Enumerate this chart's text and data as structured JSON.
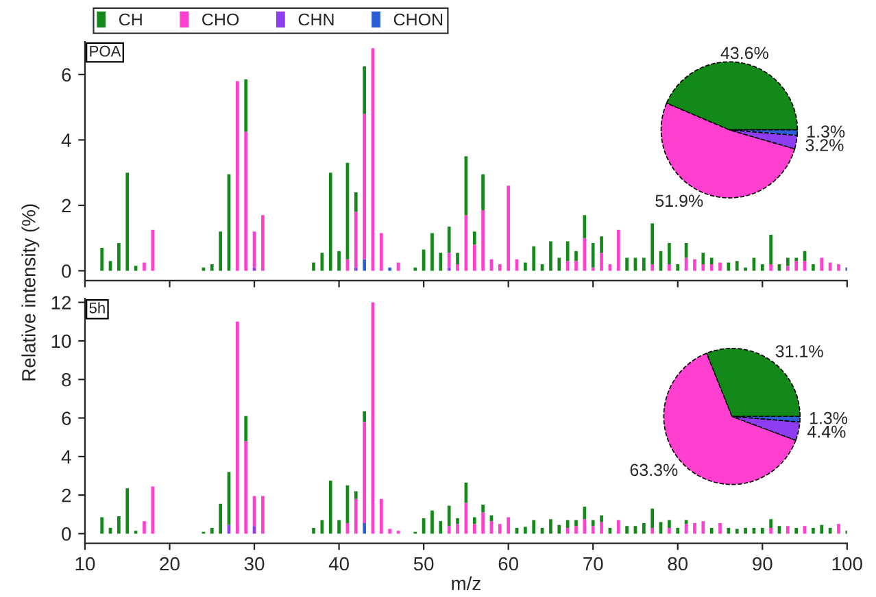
{
  "chart_data": [
    {
      "type": "bar",
      "stacked": true,
      "legend": "top left",
      "tick_labels": "y",
      "ylabel": "Relative intensity (%)",
      "annotations": [
        "POA"
      ],
      "x": [
        12,
        13,
        14,
        15,
        16,
        17,
        18,
        24,
        25,
        26,
        27,
        28,
        29,
        30,
        31,
        37,
        38,
        39,
        40,
        41,
        42,
        43,
        44,
        45,
        46,
        47,
        48,
        49,
        50,
        51,
        52,
        53,
        54,
        55,
        56,
        57,
        58,
        59,
        60,
        61,
        62,
        63,
        64,
        65,
        66,
        67,
        68,
        69,
        70,
        71,
        72,
        73,
        74,
        75,
        76,
        77,
        78,
        79,
        80,
        81,
        82,
        83,
        84,
        85,
        86,
        87,
        88,
        89,
        90,
        91,
        92,
        93,
        94,
        95,
        96,
        97,
        98,
        99,
        100
      ],
      "xlim": [
        10,
        100
      ],
      "xticks": [
        10,
        20,
        30,
        40,
        50,
        60,
        70,
        80,
        90,
        100
      ],
      "ylim": [
        -0.3,
        7
      ],
      "yticks": [
        0,
        2,
        4,
        6
      ],
      "series": [
        {
          "name": "CHON",
          "color": "#2a5fd6",
          "values": [
            null,
            null,
            null,
            null,
            null,
            null,
            null,
            null,
            null,
            null,
            null,
            null,
            null,
            null,
            null,
            null,
            null,
            null,
            null,
            null,
            null,
            0.35,
            null,
            null,
            0.1,
            null,
            null,
            null,
            null,
            null,
            null,
            null,
            null,
            null,
            null,
            null,
            null,
            null,
            null,
            null,
            null,
            null,
            null,
            null,
            null,
            null,
            null,
            null,
            null,
            null,
            null,
            null,
            null,
            null,
            null,
            null,
            null,
            null,
            null,
            null,
            null,
            null,
            null,
            null,
            null,
            null,
            null,
            null,
            null,
            null,
            null,
            null,
            null,
            null,
            null,
            null,
            null,
            null,
            0.1
          ]
        },
        {
          "name": "CHN",
          "color": "#8f3df0",
          "values": [
            null,
            null,
            null,
            null,
            null,
            null,
            null,
            null,
            null,
            null,
            null,
            null,
            null,
            0.1,
            null,
            null,
            null,
            null,
            null,
            null,
            0.1,
            null,
            null,
            null,
            null,
            null,
            null,
            null,
            null,
            null,
            null,
            0.1,
            null,
            null,
            null,
            null,
            null,
            null,
            null,
            null,
            null,
            null,
            null,
            null,
            null,
            null,
            null,
            null,
            null,
            null,
            null,
            null,
            null,
            null,
            null,
            null,
            null,
            null,
            null,
            null,
            null,
            null,
            null,
            null,
            null,
            null,
            null,
            null,
            null,
            null,
            null,
            null,
            null,
            null,
            null,
            null,
            null,
            null,
            null
          ]
        },
        {
          "name": "CHO",
          "color": "#ff3fcf",
          "values": [
            null,
            null,
            null,
            null,
            null,
            0.25,
            1.25,
            null,
            null,
            null,
            null,
            5.8,
            4.25,
            1.1,
            1.7,
            null,
            null,
            null,
            null,
            0.35,
            1.7,
            4.45,
            6.8,
            1.15,
            null,
            0.25,
            null,
            null,
            null,
            null,
            null,
            0.45,
            0.2,
            1.7,
            0.8,
            1.85,
            0.35,
            0.2,
            2.6,
            0.35,
            null,
            null,
            null,
            null,
            null,
            0.3,
            0.3,
            1.0,
            0.1,
            0.55,
            0.2,
            1.25,
            null,
            null,
            null,
            0.2,
            null,
            0.2,
            null,
            0.4,
            0.35,
            0.2,
            0.2,
            0.25,
            null,
            null,
            null,
            null,
            null,
            0.2,
            null,
            0.15,
            0.3,
            0.3,
            null,
            0.4,
            0.25,
            0.2,
            null
          ]
        },
        {
          "name": "CH",
          "color": "#13891a",
          "values": [
            0.7,
            0.3,
            0.85,
            3.0,
            0.15,
            null,
            null,
            0.1,
            0.2,
            1.2,
            2.95,
            null,
            1.6,
            null,
            null,
            0.25,
            0.55,
            3.0,
            0.6,
            2.95,
            0.6,
            1.45,
            null,
            null,
            null,
            null,
            null,
            0.1,
            0.65,
            1.15,
            0.55,
            0.8,
            0.35,
            1.8,
            0.4,
            1.1,
            null,
            null,
            null,
            null,
            0.25,
            0.75,
            0.2,
            0.9,
            0.4,
            0.6,
            0.3,
            0.7,
            0.75,
            0.5,
            null,
            null,
            0.4,
            0.4,
            0.4,
            1.25,
            0.6,
            0.65,
            0.2,
            0.45,
            null,
            0.35,
            0.2,
            null,
            0.25,
            0.3,
            0.1,
            0.4,
            0.2,
            0.9,
            0.2,
            0.25,
            0.1,
            0.3,
            0.2,
            null,
            null,
            null,
            null
          ]
        }
      ]
    },
    {
      "type": "pie",
      "categories": [
        null,
        null,
        null,
        null
      ],
      "values": [
        43.6,
        51.9,
        3.2,
        1.3
      ],
      "colors": [
        "#13891a",
        "#ff3fcf",
        "#8f3df0",
        "#2a5fd6"
      ],
      "value_labels": [
        "43.6%",
        "51.9%",
        "3.2%",
        "1.3%"
      ]
    },
    {
      "type": "bar",
      "stacked": true,
      "xlabel": "m/z",
      "annotations": [
        "5h"
      ],
      "x": [
        12,
        13,
        14,
        15,
        16,
        17,
        18,
        24,
        25,
        26,
        27,
        28,
        29,
        30,
        31,
        37,
        38,
        39,
        40,
        41,
        42,
        43,
        44,
        45,
        46,
        47,
        48,
        49,
        50,
        51,
        52,
        53,
        54,
        55,
        56,
        57,
        58,
        59,
        60,
        61,
        62,
        63,
        64,
        65,
        66,
        67,
        68,
        69,
        70,
        71,
        72,
        73,
        74,
        75,
        76,
        77,
        78,
        79,
        80,
        81,
        82,
        83,
        84,
        85,
        86,
        87,
        88,
        89,
        90,
        91,
        92,
        93,
        94,
        95,
        96,
        97,
        98,
        99,
        100
      ],
      "xlim": [
        10,
        100
      ],
      "xticks": [
        10,
        20,
        30,
        40,
        50,
        60,
        70,
        80,
        90,
        100
      ],
      "ylim": [
        -0.5,
        12.2
      ],
      "yticks": [
        0,
        2,
        4,
        6,
        8,
        10,
        12
      ],
      "series": [
        {
          "color": "#2a5fd6",
          "values": [
            null,
            null,
            null,
            null,
            null,
            null,
            null,
            null,
            null,
            null,
            null,
            null,
            null,
            null,
            null,
            null,
            null,
            null,
            null,
            null,
            null,
            0.55,
            null,
            null,
            null,
            null,
            null,
            null,
            null,
            null,
            null,
            null,
            null,
            null,
            null,
            null,
            null,
            null,
            null,
            null,
            null,
            null,
            null,
            null,
            null,
            null,
            null,
            null,
            null,
            null,
            null,
            null,
            null,
            null,
            null,
            null,
            null,
            null,
            null,
            null,
            null,
            null,
            null,
            null,
            null,
            null,
            null,
            null,
            null,
            null,
            null,
            null,
            null,
            null,
            null,
            null,
            null,
            null,
            null
          ]
        },
        {
          "color": "#8f3df0",
          "values": [
            null,
            null,
            null,
            null,
            null,
            null,
            null,
            null,
            null,
            null,
            0.45,
            null,
            null,
            0.4,
            null,
            null,
            null,
            null,
            null,
            null,
            null,
            null,
            null,
            null,
            null,
            null,
            null,
            null,
            null,
            null,
            null,
            null,
            null,
            null,
            null,
            null,
            null,
            null,
            null,
            null,
            null,
            null,
            null,
            null,
            null,
            null,
            null,
            null,
            null,
            null,
            null,
            null,
            null,
            null,
            null,
            null,
            null,
            null,
            null,
            null,
            null,
            null,
            null,
            null,
            null,
            null,
            null,
            null,
            null,
            null,
            null,
            null,
            null,
            null,
            null,
            null,
            null,
            null,
            null
          ]
        },
        {
          "color": "#ff3fcf",
          "values": [
            null,
            null,
            null,
            null,
            null,
            0.65,
            2.45,
            null,
            null,
            null,
            null,
            11.0,
            4.8,
            1.55,
            1.95,
            null,
            null,
            null,
            null,
            0.55,
            1.8,
            5.25,
            12.0,
            1.8,
            0.25,
            0.15,
            null,
            null,
            null,
            null,
            null,
            0.4,
            0.5,
            1.6,
            0.5,
            1.1,
            0.65,
            0.5,
            0.85,
            null,
            null,
            null,
            null,
            null,
            null,
            0.3,
            0.4,
            0.75,
            0.4,
            0.6,
            null,
            0.7,
            null,
            null,
            null,
            0.3,
            null,
            0.3,
            null,
            0.5,
            0.55,
            0.65,
            null,
            0.55,
            null,
            null,
            null,
            null,
            null,
            0.3,
            null,
            0.4,
            null,
            0.4,
            null,
            null,
            null,
            0.5,
            null
          ]
        },
        {
          "color": "#13891a",
          "values": [
            0.85,
            0.3,
            0.9,
            2.35,
            0.15,
            null,
            null,
            0.1,
            0.3,
            1.55,
            2.75,
            null,
            1.3,
            null,
            null,
            0.3,
            0.7,
            2.75,
            0.7,
            1.95,
            0.4,
            0.55,
            null,
            null,
            null,
            null,
            null,
            0.1,
            0.8,
            1.2,
            0.65,
            1.05,
            0.3,
            1.05,
            0.35,
            0.4,
            0.3,
            null,
            null,
            0.3,
            0.35,
            0.7,
            0.3,
            0.75,
            0.45,
            0.4,
            0.3,
            0.65,
            0.3,
            0.35,
            0.3,
            null,
            0.4,
            0.4,
            0.55,
            1.0,
            0.6,
            0.4,
            0.3,
            0.2,
            null,
            null,
            0.3,
            null,
            0.3,
            0.25,
            0.3,
            0.3,
            0.3,
            0.45,
            0.4,
            null,
            0.3,
            null,
            0.3,
            0.45,
            0.3,
            null,
            0.15
          ]
        }
      ]
    },
    {
      "type": "pie",
      "categories": [
        null,
        null,
        null,
        null
      ],
      "values": [
        31.1,
        63.3,
        4.4,
        1.3
      ],
      "colors": [
        "#13891a",
        "#ff3fcf",
        "#8f3df0",
        "#2a5fd6"
      ],
      "value_labels": [
        "31.1%",
        "63.3%",
        "4.4%",
        "1.3%"
      ]
    }
  ]
}
